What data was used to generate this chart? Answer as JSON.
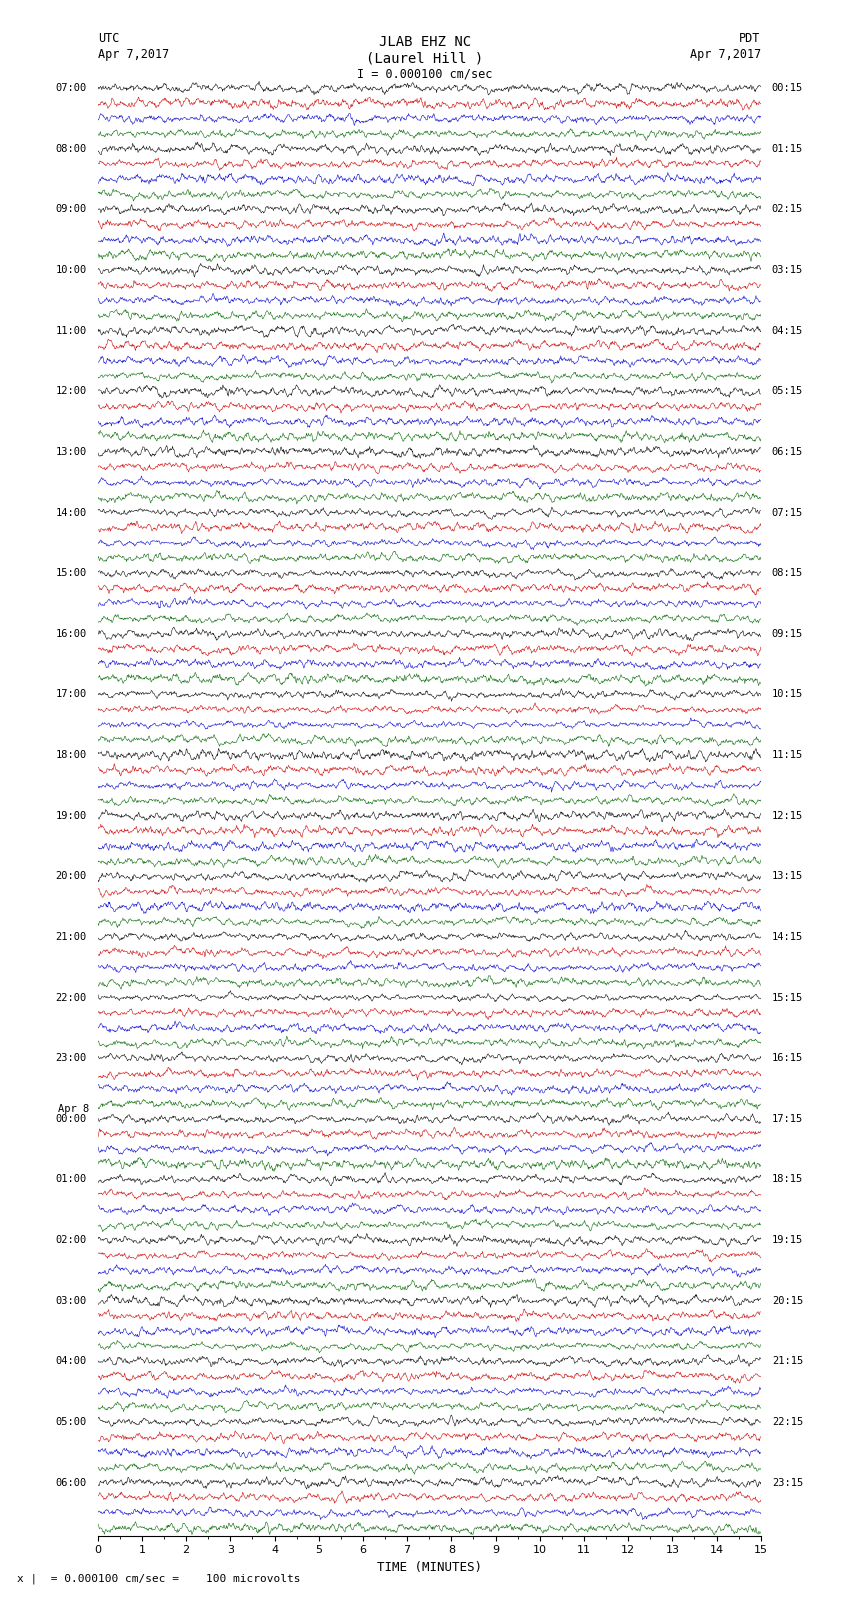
{
  "title_line1": "JLAB EHZ NC",
  "title_line2": "(Laurel Hill )",
  "scale_text": "I = 0.000100 cm/sec",
  "utc_label": "UTC",
  "utc_date": "Apr 7,2017",
  "pdt_label": "PDT",
  "pdt_date": "Apr 7,2017",
  "xlabel": "TIME (MINUTES)",
  "footnote": "x |  = 0.000100 cm/sec =    100 microvolts",
  "left_times": [
    "07:00",
    "08:00",
    "09:00",
    "10:00",
    "11:00",
    "12:00",
    "13:00",
    "14:00",
    "15:00",
    "16:00",
    "17:00",
    "18:00",
    "19:00",
    "20:00",
    "21:00",
    "22:00",
    "23:00",
    "00:00",
    "01:00",
    "02:00",
    "03:00",
    "04:00",
    "05:00",
    "06:00"
  ],
  "right_times": [
    "00:15",
    "01:15",
    "02:15",
    "03:15",
    "04:15",
    "05:15",
    "06:15",
    "07:15",
    "08:15",
    "09:15",
    "10:15",
    "11:15",
    "12:15",
    "13:15",
    "14:15",
    "15:15",
    "16:15",
    "17:15",
    "18:15",
    "19:15",
    "20:15",
    "21:15",
    "22:15",
    "23:15"
  ],
  "trace_colors": [
    "#000000",
    "#cc0000",
    "#0000cc",
    "#006600"
  ],
  "n_hours": 24,
  "traces_per_hour": 4,
  "minutes": 15,
  "bg_color": "#ffffff",
  "figwidth": 8.5,
  "figheight": 16.13,
  "dpi": 100,
  "amplitude_base": 0.38
}
